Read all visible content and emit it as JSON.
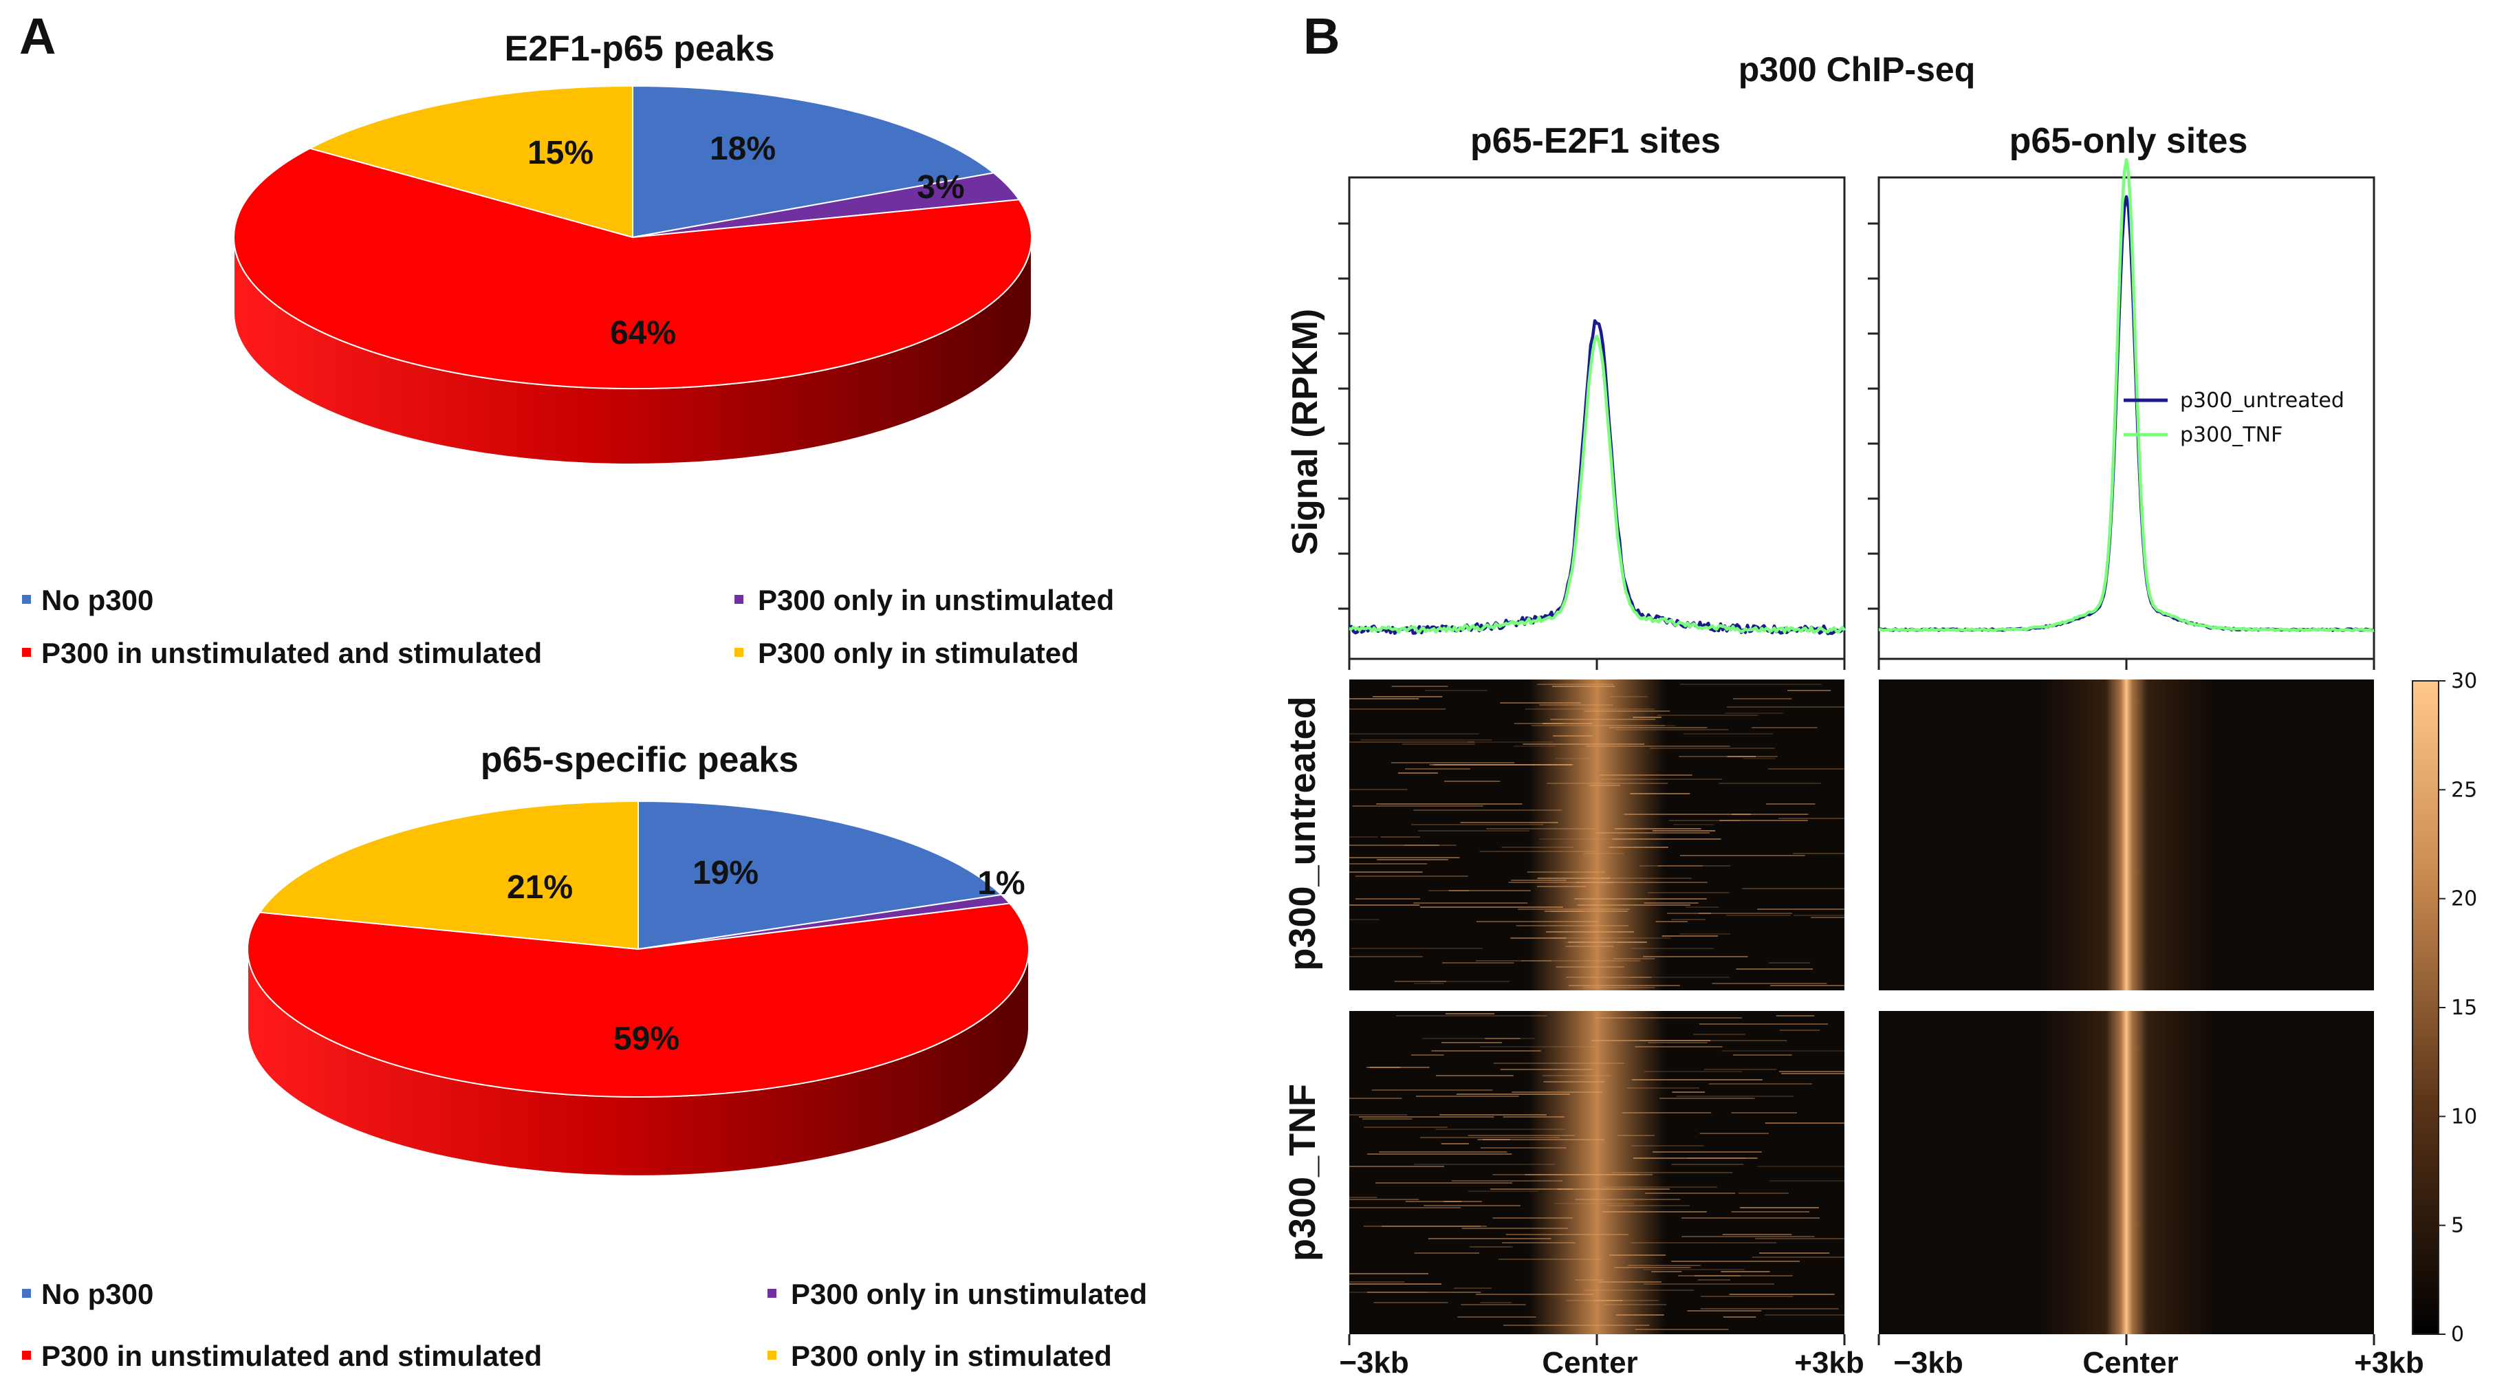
{
  "panel_a": {
    "label": "A"
  },
  "panel_b": {
    "label": "B",
    "title": "p300 ChIP-seq"
  },
  "legend_items": [
    {
      "label": "No p300",
      "color": "#4472C4"
    },
    {
      "label": "P300 only in unstimulated",
      "color": "#7030A0"
    },
    {
      "label": "P300 in unstimulated and stimulated",
      "color": "#FF0000"
    },
    {
      "label": "P300 only in stimulated",
      "color": "#FFC000"
    }
  ],
  "colors": {
    "no_p300": "#4472C4",
    "only_unstim": "#7030A0",
    "both": "#FF0000",
    "only_stim": "#FFC000",
    "untreated_line": "#1A1A8C",
    "tnf_line": "#7CFC7C"
  },
  "chart_data": [
    {
      "type": "pie",
      "title": "E2F1-p65 peaks",
      "categories": [
        "No p300",
        "P300 only in unstimulated",
        "P300 in unstimulated and stimulated",
        "P300 only in stimulated"
      ],
      "values": [
        18,
        3,
        64,
        15
      ],
      "labels": [
        "18%",
        "3%",
        "64%",
        "15%"
      ]
    },
    {
      "type": "pie",
      "title": "p65-specific peaks",
      "categories": [
        "No p300",
        "P300 only in unstimulated",
        "P300 in unstimulated and stimulated",
        "P300 only in stimulated"
      ],
      "values": [
        19,
        1,
        59,
        21
      ],
      "labels": [
        "19%",
        "1%",
        "59%",
        "21%"
      ]
    },
    {
      "type": "line",
      "title": "p65-E2F1 sites",
      "ylabel": "Signal (RPKM)",
      "x_ticks": [
        "−3kb",
        "Center",
        "+3kb"
      ],
      "x": [
        -3000,
        -2000,
        -1000,
        -500,
        -250,
        0,
        250,
        500,
        1000,
        2000,
        3000
      ],
      "ylim": [
        0,
        1
      ],
      "series": [
        {
          "name": "p300_untreated",
          "values": [
            0.03,
            0.04,
            0.07,
            0.15,
            0.35,
            0.72,
            0.33,
            0.16,
            0.06,
            0.04,
            0.02
          ]
        },
        {
          "name": "p300_TNF",
          "values": [
            0.03,
            0.04,
            0.06,
            0.14,
            0.33,
            0.68,
            0.31,
            0.14,
            0.05,
            0.03,
            0.02
          ]
        }
      ]
    },
    {
      "type": "line",
      "title": "p65-only sites",
      "x_ticks": [
        "−3kb",
        "Center",
        "+3kb"
      ],
      "x": [
        -3000,
        -2000,
        -1000,
        -500,
        -250,
        0,
        250,
        500,
        1000,
        2000,
        3000
      ],
      "ylim": [
        0,
        1
      ],
      "legend": [
        "p300_untreated",
        "p300_TNF"
      ],
      "series": [
        {
          "name": "p300_untreated",
          "values": [
            0.05,
            0.06,
            0.09,
            0.16,
            0.4,
            0.92,
            0.38,
            0.15,
            0.08,
            0.06,
            0.05
          ]
        },
        {
          "name": "p300_TNF",
          "values": [
            0.05,
            0.06,
            0.09,
            0.17,
            0.44,
            1.0,
            0.41,
            0.16,
            0.08,
            0.06,
            0.05
          ]
        }
      ]
    },
    {
      "type": "heatmap",
      "row_labels": [
        "p300_untreated",
        "p300_TNF"
      ],
      "column_labels": [
        "p65-E2F1 sites",
        "p65-only sites"
      ],
      "x_ticks": [
        "−3kb",
        "Center",
        "+3kb"
      ],
      "colorbar": {
        "min": 0,
        "max": 30,
        "ticks": [
          "0",
          "5",
          "10",
          "15",
          "20",
          "25",
          "30"
        ]
      }
    }
  ]
}
